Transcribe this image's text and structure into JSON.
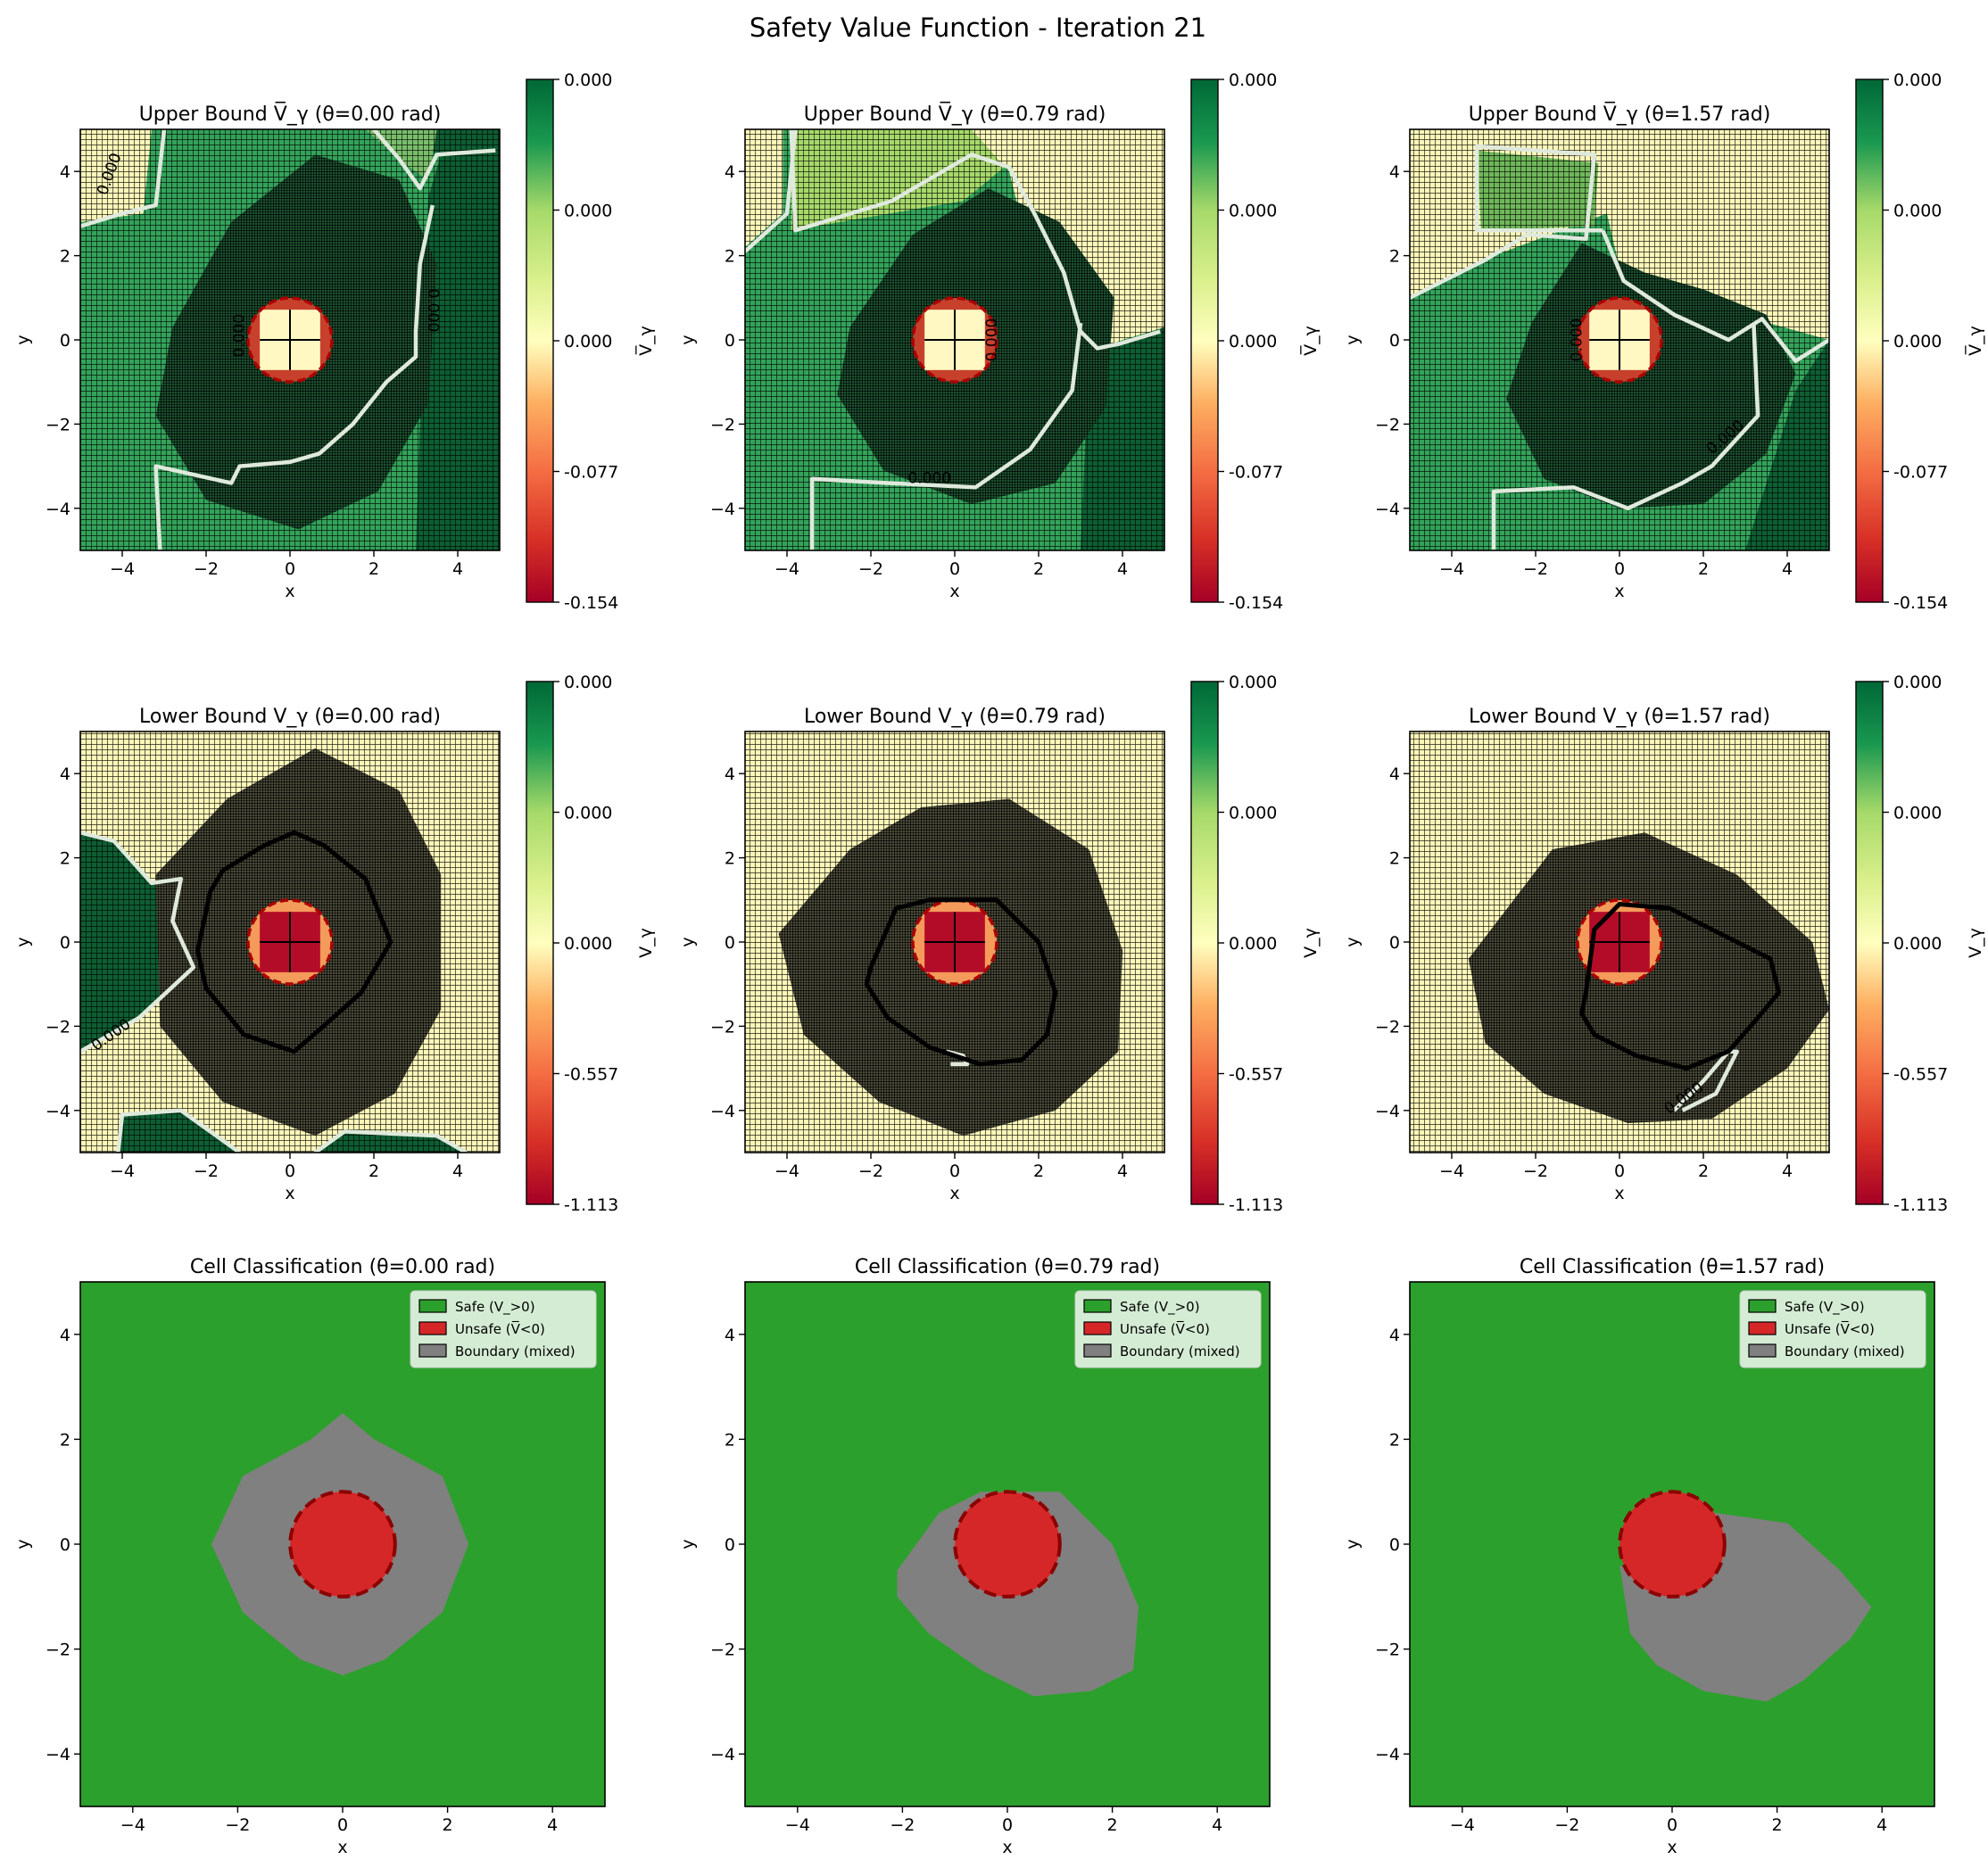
{
  "figure": {
    "suptitle": "Safety Value Function - Iteration 21"
  },
  "chart_data": [
    {
      "type": "heatmap",
      "title": "Upper Bound V̅_γ (θ=0.00 rad)",
      "xlabel": "x",
      "ylabel": "y",
      "xlim": [
        -5,
        5
      ],
      "ylim": [
        -5,
        5
      ],
      "x_ticks": [
        -4,
        -2,
        0,
        2,
        4
      ],
      "y_ticks": [
        -4,
        -2,
        0,
        2,
        4
      ],
      "colorbar_label": "V̅_γ",
      "colorbar_ticks": [
        "0.000",
        "0.000",
        "0.000",
        "-0.077",
        "-0.154"
      ],
      "contour_labels": [
        "0.000",
        "0.000",
        "0.000"
      ],
      "obstacle": {
        "center": [
          0,
          0
        ],
        "radius": 1.0
      }
    },
    {
      "type": "heatmap",
      "title": "Upper Bound V̅_γ (θ=0.79 rad)",
      "xlabel": "x",
      "ylabel": "y",
      "xlim": [
        -5,
        5
      ],
      "ylim": [
        -5,
        5
      ],
      "x_ticks": [
        -4,
        -2,
        0,
        2,
        4
      ],
      "y_ticks": [
        -4,
        -2,
        0,
        2,
        4
      ],
      "colorbar_label": "V̅_γ",
      "colorbar_ticks": [
        "0.000",
        "0.000",
        "0.000",
        "-0.077",
        "-0.154"
      ],
      "contour_labels": [
        "0.000",
        "0.000"
      ],
      "obstacle": {
        "center": [
          0,
          0
        ],
        "radius": 1.0
      }
    },
    {
      "type": "heatmap",
      "title": "Upper Bound V̅_γ (θ=1.57 rad)",
      "xlabel": "x",
      "ylabel": "y",
      "xlim": [
        -5,
        5
      ],
      "ylim": [
        -5,
        5
      ],
      "x_ticks": [
        -4,
        -2,
        0,
        2,
        4
      ],
      "y_ticks": [
        -4,
        -2,
        0,
        2,
        4
      ],
      "colorbar_label": "V̅_γ",
      "colorbar_ticks": [
        "0.000",
        "0.000",
        "0.000",
        "-0.077",
        "-0.154"
      ],
      "contour_labels": [
        "0.000",
        "0.000"
      ],
      "obstacle": {
        "center": [
          0,
          0
        ],
        "radius": 1.0
      }
    },
    {
      "type": "heatmap",
      "title": "Lower Bound V_γ (θ=0.00 rad)",
      "xlabel": "x",
      "ylabel": "y",
      "xlim": [
        -5,
        5
      ],
      "ylim": [
        -5,
        5
      ],
      "x_ticks": [
        -4,
        -2,
        0,
        2,
        4
      ],
      "y_ticks": [
        -4,
        -2,
        0,
        2,
        4
      ],
      "colorbar_label": "V_γ",
      "colorbar_ticks": [
        "0.000",
        "0.000",
        "0.000",
        "-0.557",
        "-1.113"
      ],
      "contour_labels": [
        "0.000"
      ],
      "obstacle": {
        "center": [
          0,
          0
        ],
        "radius": 1.0
      }
    },
    {
      "type": "heatmap",
      "title": "Lower Bound V_γ (θ=0.79 rad)",
      "xlabel": "x",
      "ylabel": "y",
      "xlim": [
        -5,
        5
      ],
      "ylim": [
        -5,
        5
      ],
      "x_ticks": [
        -4,
        -2,
        0,
        2,
        4
      ],
      "y_ticks": [
        -4,
        -2,
        0,
        2,
        4
      ],
      "colorbar_label": "V_γ",
      "colorbar_ticks": [
        "0.000",
        "0.000",
        "0.000",
        "-0.557",
        "-1.113"
      ],
      "contour_labels": [],
      "obstacle": {
        "center": [
          0,
          0
        ],
        "radius": 1.0
      }
    },
    {
      "type": "heatmap",
      "title": "Lower Bound V_γ (θ=1.57 rad)",
      "xlabel": "x",
      "ylabel": "y",
      "xlim": [
        -5,
        5
      ],
      "ylim": [
        -5,
        5
      ],
      "x_ticks": [
        -4,
        -2,
        0,
        2,
        4
      ],
      "y_ticks": [
        -4,
        -2,
        0,
        2,
        4
      ],
      "colorbar_label": "V_γ",
      "colorbar_ticks": [
        "0.000",
        "0.000",
        "0.000",
        "-0.557",
        "-1.113"
      ],
      "contour_labels": [
        "0.000"
      ],
      "obstacle": {
        "center": [
          0,
          0
        ],
        "radius": 1.0
      }
    },
    {
      "type": "heatmap",
      "title": "Cell Classification (θ=0.00 rad)",
      "xlabel": "x",
      "ylabel": "y",
      "xlim": [
        -5,
        5
      ],
      "ylim": [
        -5,
        5
      ],
      "x_ticks": [
        -4,
        -2,
        0,
        2,
        4
      ],
      "y_ticks": [
        -4,
        -2,
        0,
        2,
        4
      ],
      "legend": [
        "Safe (V_>0)",
        "Unsafe (V̅<0)",
        "Boundary (mixed)"
      ],
      "legend_position": "top-right",
      "obstacle": {
        "center": [
          0,
          0
        ],
        "radius": 1.0
      },
      "boundary_region": [
        [
          -2.5,
          0
        ],
        [
          -1.9,
          1.3
        ],
        [
          -0.6,
          2.0
        ],
        [
          0.0,
          2.5
        ],
        [
          0.6,
          2.0
        ],
        [
          1.9,
          1.3
        ],
        [
          2.4,
          0
        ],
        [
          1.9,
          -1.3
        ],
        [
          0.8,
          -2.2
        ],
        [
          0.0,
          -2.5
        ],
        [
          -0.8,
          -2.2
        ],
        [
          -1.9,
          -1.3
        ]
      ]
    },
    {
      "type": "heatmap",
      "title": "Cell Classification (θ=0.79 rad)",
      "xlabel": "x",
      "ylabel": "y",
      "xlim": [
        -5,
        5
      ],
      "ylim": [
        -5,
        5
      ],
      "x_ticks": [
        -4,
        -2,
        0,
        2,
        4
      ],
      "y_ticks": [
        -4,
        -2,
        0,
        2,
        4
      ],
      "legend": [
        "Safe (V_>0)",
        "Unsafe (V̅<0)",
        "Boundary (mixed)"
      ],
      "legend_position": "top-right",
      "obstacle": {
        "center": [
          0,
          0
        ],
        "radius": 1.0
      },
      "boundary_region": [
        [
          -2.1,
          -0.5
        ],
        [
          -1.3,
          0.6
        ],
        [
          -0.5,
          1.0
        ],
        [
          1.0,
          1.0
        ],
        [
          2.0,
          0.0
        ],
        [
          2.5,
          -1.2
        ],
        [
          2.4,
          -2.4
        ],
        [
          1.6,
          -2.8
        ],
        [
          0.5,
          -2.9
        ],
        [
          -0.5,
          -2.4
        ],
        [
          -1.5,
          -1.7
        ],
        [
          -2.1,
          -1.0
        ]
      ]
    },
    {
      "type": "heatmap",
      "title": "Cell Classification (θ=1.57 rad)",
      "xlabel": "x",
      "ylabel": "y",
      "xlim": [
        -5,
        5
      ],
      "ylim": [
        -5,
        5
      ],
      "x_ticks": [
        -4,
        -2,
        0,
        2,
        4
      ],
      "y_ticks": [
        -4,
        -2,
        0,
        2,
        4
      ],
      "legend": [
        "Safe (V_>0)",
        "Unsafe (V̅<0)",
        "Boundary (mixed)"
      ],
      "legend_position": "top-right",
      "obstacle": {
        "center": [
          0,
          0
        ],
        "radius": 1.0
      },
      "boundary_region": [
        [
          -1.0,
          -0.4
        ],
        [
          0.0,
          -1.0
        ],
        [
          0.8,
          0.6
        ],
        [
          2.2,
          0.4
        ],
        [
          3.2,
          -0.5
        ],
        [
          3.8,
          -1.2
        ],
        [
          3.4,
          -1.8
        ],
        [
          2.5,
          -2.6
        ],
        [
          1.8,
          -3.0
        ],
        [
          0.6,
          -2.8
        ],
        [
          -0.3,
          -2.3
        ],
        [
          -0.8,
          -1.7
        ]
      ]
    }
  ],
  "colors": {
    "safe": "#2ca02c",
    "unsafe": "#d62728",
    "boundary": "#808080",
    "obstacle_outline": "#8b0000",
    "contour_zero": "#dfe9dc"
  }
}
